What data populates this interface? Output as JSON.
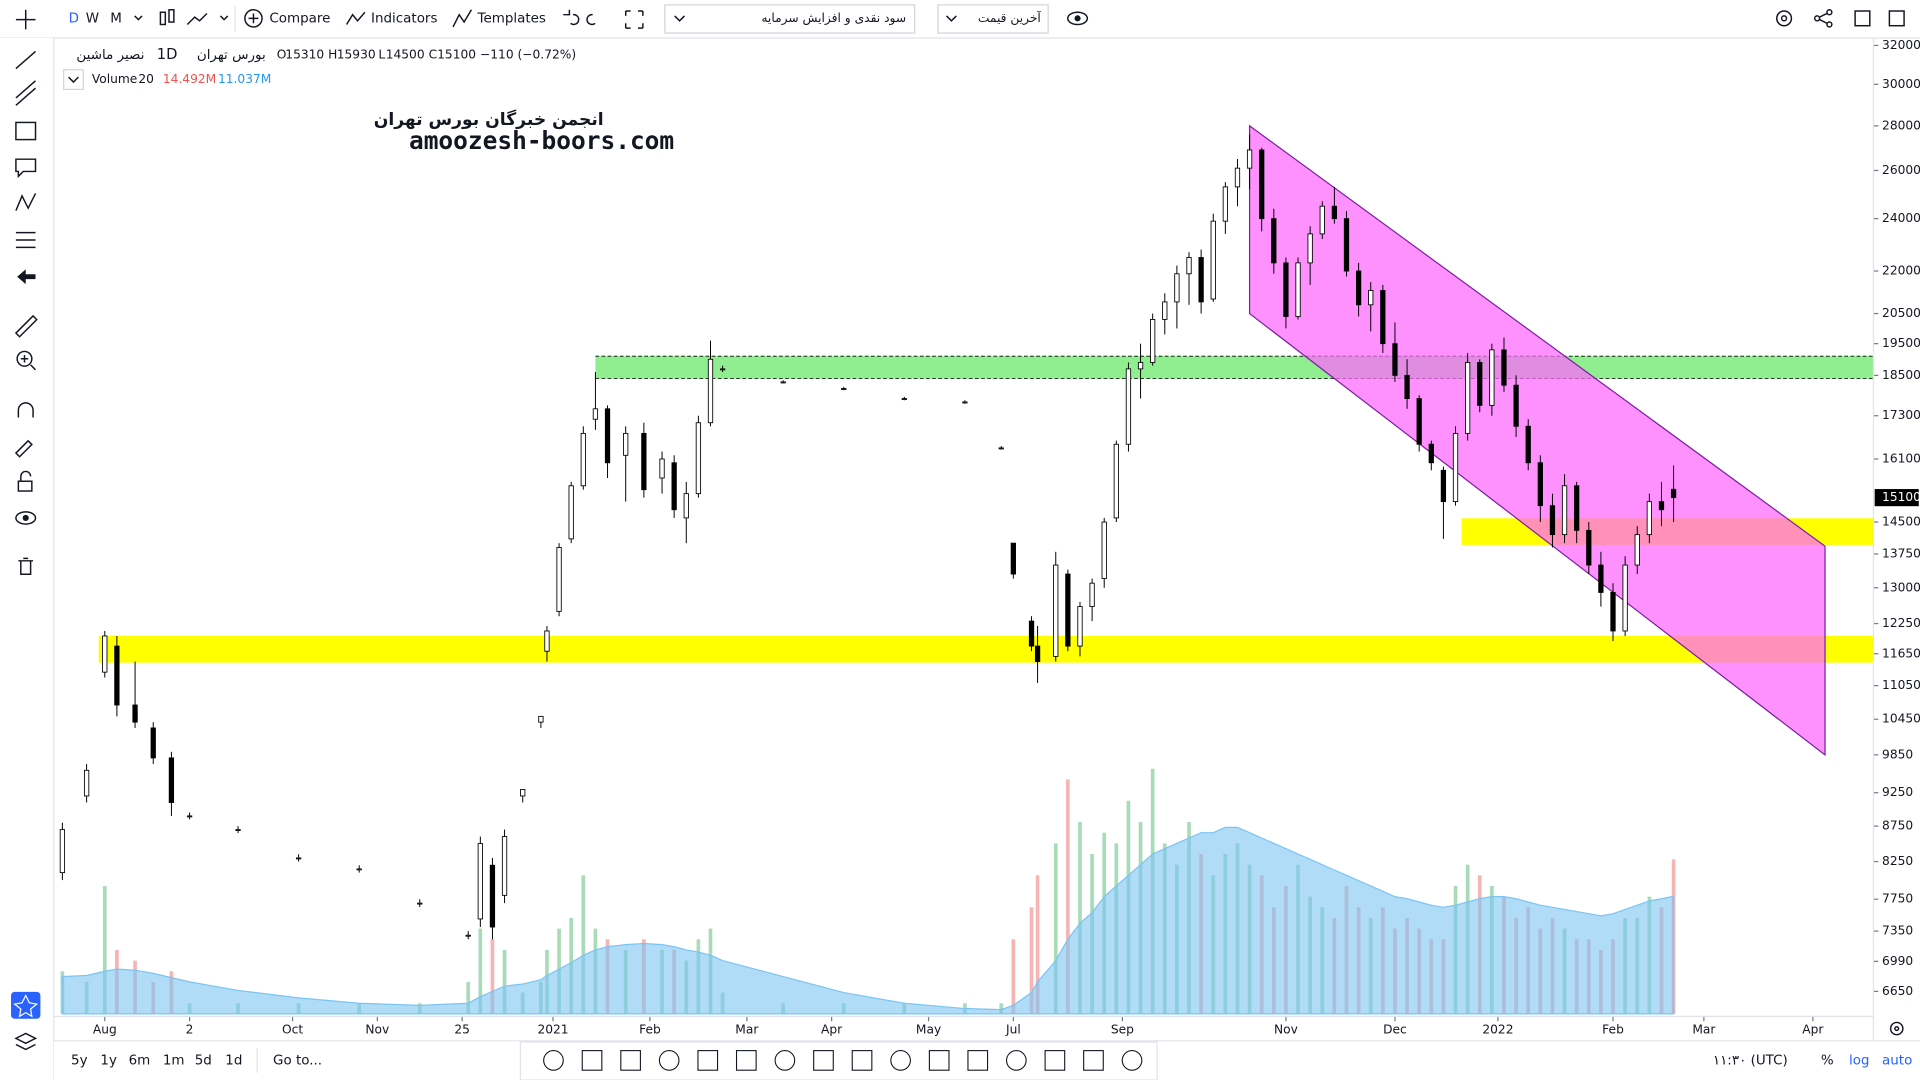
{
  "toolbar": {
    "intervals": [
      "D",
      "W",
      "M"
    ],
    "compare": "Compare",
    "indicators": "Indicators",
    "templates": "Templates",
    "dividend_dropdown": "سود نقدی و افزایش سرمایه",
    "price_dropdown": "آخرین قیمت"
  },
  "header": {
    "symbol": "نصیر ماشین",
    "interval": "1D",
    "exchange": "بورس تهران",
    "open_label": "O",
    "open": 15310,
    "high_label": "H",
    "high": 15930,
    "low_label": "L",
    "low": 14500,
    "close_label": "C",
    "close": 15100,
    "change": "−110 (−0.72%)",
    "volume_label": "Volume",
    "volume_length": 20,
    "volume_last": "14.492M",
    "volume_ma_last": "11.037M"
  },
  "watermark": {
    "persian": "انجمن خبرگان بورس تهران",
    "site": "amoozesh-boors.com"
  },
  "bottom_bar": {
    "ranges": [
      "5y",
      "1y",
      "6m",
      "1m",
      "5d",
      "1d"
    ],
    "goto": "Go to...",
    "clock": "۱۱:۳۰ (UTC)",
    "percent": "%",
    "log": "log",
    "auto": "auto"
  },
  "chart_data": {
    "type": "candlestick",
    "log_scale": true,
    "up_color": "#ffffff",
    "down_color": "#000000",
    "up_volume_color": "#a8dbb8",
    "down_volume_color": "#f5b5b5",
    "volume_ma_color": "#7cc4f4",
    "volume_ylim": [
      0,
      27
    ],
    "xlim": [
      0,
      300
    ],
    "ylim": [
      6380,
      32400
    ],
    "yticks": [
      32000,
      30000,
      28000,
      26000,
      24000,
      22000,
      20500,
      19500,
      18500,
      17300,
      16100,
      14500,
      13750,
      13000,
      12250,
      11650,
      11050,
      10450,
      9850,
      9250,
      8750,
      8250,
      7750,
      7350,
      6990,
      6650
    ],
    "xticks": [
      {
        "value": 8,
        "label": "Aug"
      },
      {
        "value": 22,
        "label": "2"
      },
      {
        "value": 39,
        "label": "Oct"
      },
      {
        "value": 53,
        "label": "Nov"
      },
      {
        "value": 67,
        "label": "25"
      },
      {
        "value": 82,
        "label": "2021"
      },
      {
        "value": 98,
        "label": "Feb"
      },
      {
        "value": 114,
        "label": "Mar"
      },
      {
        "value": 128,
        "label": "Apr"
      },
      {
        "value": 144,
        "label": "May"
      },
      {
        "value": 158,
        "label": "Jul"
      },
      {
        "value": 176,
        "label": "Sep"
      },
      {
        "value": 203,
        "label": "Nov"
      },
      {
        "value": 221,
        "label": "Dec"
      },
      {
        "value": 238,
        "label": "2022"
      },
      {
        "value": 257,
        "label": "Feb"
      },
      {
        "value": 272,
        "label": "Mar"
      },
      {
        "value": 290,
        "label": "Apr"
      }
    ],
    "zones": [
      {
        "xlim": [
          7,
          300
        ],
        "ylim": [
          11480,
          12000
        ],
        "color": "#ffff00",
        "border": "none"
      },
      {
        "xlim": [
          89,
          300
        ],
        "ylim": [
          18400,
          19100
        ],
        "color": "#90ee90",
        "border": "dashed"
      },
      {
        "xlim": [
          232,
          300
        ],
        "ylim": [
          13960,
          14590
        ],
        "color": "#ffff00",
        "border": "none"
      }
    ],
    "channel": {
      "x": [
        197,
        292,
        292,
        197
      ],
      "y": [
        28000,
        13930,
        9850,
        20500
      ],
      "color": "#ff66ff"
    },
    "candles": [
      {
        "x": 1,
        "open": 8100,
        "high": 8800,
        "low": 8000,
        "close": 8700,
        "volume": 4,
        "volume_ma": 3.5
      },
      {
        "x": 5,
        "open": 9200,
        "high": 9700,
        "low": 9100,
        "close": 9600,
        "volume": 3,
        "volume_ma": 3.6
      },
      {
        "x": 8,
        "open": 11300,
        "high": 12100,
        "low": 11200,
        "close": 12000,
        "volume": 12,
        "volume_ma": 4
      },
      {
        "x": 10,
        "open": 11800,
        "high": 12000,
        "low": 10500,
        "close": 10700,
        "volume": 6,
        "volume_ma": 4.2
      },
      {
        "x": 13,
        "open": 10700,
        "high": 11500,
        "low": 10300,
        "close": 10400,
        "volume": 5,
        "volume_ma": 4.1
      },
      {
        "x": 16,
        "open": 10300,
        "high": 10400,
        "low": 9700,
        "close": 9800,
        "volume": 3,
        "volume_ma": 3.8
      },
      {
        "x": 19,
        "open": 9800,
        "high": 9900,
        "low": 8900,
        "close": 9100,
        "volume": 4,
        "volume_ma": 3.4
      },
      {
        "x": 22,
        "open": 8900,
        "high": 8950,
        "low": 8850,
        "close": 8900,
        "volume": 1,
        "volume_ma": 3
      },
      {
        "x": 30,
        "open": 8700,
        "high": 8750,
        "low": 8650,
        "close": 8700,
        "volume": 1,
        "volume_ma": 2.2
      },
      {
        "x": 40,
        "open": 8300,
        "high": 8350,
        "low": 8250,
        "close": 8300,
        "volume": 1,
        "volume_ma": 1.5
      },
      {
        "x": 50,
        "open": 8150,
        "high": 8200,
        "low": 8100,
        "close": 8150,
        "volume": 1,
        "volume_ma": 1
      },
      {
        "x": 60,
        "open": 7700,
        "high": 7750,
        "low": 7650,
        "close": 7700,
        "volume": 1,
        "volume_ma": 0.8
      },
      {
        "x": 68,
        "open": 7300,
        "high": 7350,
        "low": 7250,
        "close": 7300,
        "volume": 3,
        "volume_ma": 1
      },
      {
        "x": 70,
        "open": 7500,
        "high": 8600,
        "low": 7400,
        "close": 8500,
        "volume": 8,
        "volume_ma": 1.6
      },
      {
        "x": 72,
        "open": 8200,
        "high": 8300,
        "low": 7250,
        "close": 7400,
        "volume": 7,
        "volume_ma": 2.1
      },
      {
        "x": 74,
        "open": 7800,
        "high": 8700,
        "low": 7700,
        "close": 8600,
        "volume": 6,
        "volume_ma": 2.6
      },
      {
        "x": 77,
        "open": 9200,
        "high": 9300,
        "low": 9100,
        "close": 9300,
        "volume": 2,
        "volume_ma": 2.8
      },
      {
        "x": 80,
        "open": 10400,
        "high": 10500,
        "low": 10300,
        "close": 10500,
        "volume": 3,
        "volume_ma": 3.2
      },
      {
        "x": 81,
        "open": 11700,
        "high": 12200,
        "low": 11500,
        "close": 12100,
        "volume": 6,
        "volume_ma": 3.6
      },
      {
        "x": 83,
        "open": 12500,
        "high": 14000,
        "low": 12400,
        "close": 13900,
        "volume": 8,
        "volume_ma": 4.2
      },
      {
        "x": 85,
        "open": 14100,
        "high": 15500,
        "low": 14000,
        "close": 15400,
        "volume": 9,
        "volume_ma": 4.8
      },
      {
        "x": 87,
        "open": 15400,
        "high": 17000,
        "low": 15300,
        "close": 16800,
        "volume": 13,
        "volume_ma": 5.5
      },
      {
        "x": 89,
        "open": 17200,
        "high": 18600,
        "low": 16900,
        "close": 17500,
        "volume": 8,
        "volume_ma": 6
      },
      {
        "x": 91,
        "open": 17500,
        "high": 17600,
        "low": 15600,
        "close": 16000,
        "volume": 7,
        "volume_ma": 6.3
      },
      {
        "x": 94,
        "open": 16200,
        "high": 17000,
        "low": 15000,
        "close": 16800,
        "volume": 6,
        "volume_ma": 6.5
      },
      {
        "x": 97,
        "open": 16800,
        "high": 17100,
        "low": 15100,
        "close": 15300,
        "volume": 7,
        "volume_ma": 6.6
      },
      {
        "x": 100,
        "open": 15600,
        "high": 16300,
        "low": 15200,
        "close": 16100,
        "volume": 6,
        "volume_ma": 6.5
      },
      {
        "x": 102,
        "open": 16000,
        "high": 16200,
        "low": 14600,
        "close": 14800,
        "volume": 6,
        "volume_ma": 6.3
      },
      {
        "x": 104,
        "open": 14600,
        "high": 15500,
        "low": 14000,
        "close": 15200,
        "volume": 5,
        "volume_ma": 6
      },
      {
        "x": 106,
        "open": 15200,
        "high": 17300,
        "low": 15100,
        "close": 17100,
        "volume": 7,
        "volume_ma": 5.8
      },
      {
        "x": 108,
        "open": 17100,
        "high": 19600,
        "low": 17000,
        "close": 19000,
        "volume": 8,
        "volume_ma": 5.5
      },
      {
        "x": 110,
        "open": 18700,
        "high": 18800,
        "low": 18600,
        "close": 18700,
        "volume": 2,
        "volume_ma": 5
      },
      {
        "x": 120,
        "open": 18300,
        "high": 18350,
        "low": 18250,
        "close": 18300,
        "volume": 1,
        "volume_ma": 3.5
      },
      {
        "x": 130,
        "open": 18100,
        "high": 18150,
        "low": 18050,
        "close": 18100,
        "volume": 1,
        "volume_ma": 2
      },
      {
        "x": 140,
        "open": 17800,
        "high": 17850,
        "low": 17750,
        "close": 17800,
        "volume": 1,
        "volume_ma": 1
      },
      {
        "x": 150,
        "open": 17700,
        "high": 17750,
        "low": 17650,
        "close": 17700,
        "volume": 1,
        "volume_ma": 0.5
      },
      {
        "x": 156,
        "open": 16400,
        "high": 16450,
        "low": 16350,
        "close": 16400,
        "volume": 1,
        "volume_ma": 0.4
      },
      {
        "x": 158,
        "open": 14000,
        "high": 14000,
        "low": 13200,
        "close": 13300,
        "volume": 7,
        "volume_ma": 0.8
      },
      {
        "x": 161,
        "open": 12300,
        "high": 12400,
        "low": 11700,
        "close": 11800,
        "volume": 10,
        "volume_ma": 2
      },
      {
        "x": 162,
        "open": 11800,
        "high": 12200,
        "low": 11100,
        "close": 11500,
        "volume": 13,
        "volume_ma": 3
      },
      {
        "x": 165,
        "open": 11600,
        "high": 13800,
        "low": 11500,
        "close": 13500,
        "volume": 16,
        "volume_ma": 5
      },
      {
        "x": 167,
        "open": 13300,
        "high": 13400,
        "low": 11700,
        "close": 11800,
        "volume": 22,
        "volume_ma": 7
      },
      {
        "x": 169,
        "open": 11800,
        "high": 12700,
        "low": 11600,
        "close": 12600,
        "volume": 18,
        "volume_ma": 8.5
      },
      {
        "x": 171,
        "open": 12600,
        "high": 13200,
        "low": 12300,
        "close": 13100,
        "volume": 15,
        "volume_ma": 9.5
      },
      {
        "x": 173,
        "open": 13200,
        "high": 14600,
        "low": 13000,
        "close": 14500,
        "volume": 17,
        "volume_ma": 11
      },
      {
        "x": 175,
        "open": 14600,
        "high": 16600,
        "low": 14500,
        "close": 16500,
        "volume": 16,
        "volume_ma": 12
      },
      {
        "x": 177,
        "open": 16500,
        "high": 18900,
        "low": 16300,
        "close": 18700,
        "volume": 20,
        "volume_ma": 13
      },
      {
        "x": 179,
        "open": 18700,
        "high": 19500,
        "low": 17800,
        "close": 18900,
        "volume": 18,
        "volume_ma": 14
      },
      {
        "x": 181,
        "open": 18900,
        "high": 20500,
        "low": 18800,
        "close": 20300,
        "volume": 23,
        "volume_ma": 15
      },
      {
        "x": 183,
        "open": 20300,
        "high": 21200,
        "low": 19800,
        "close": 20900,
        "volume": 16,
        "volume_ma": 15.5
      },
      {
        "x": 185,
        "open": 20900,
        "high": 22200,
        "low": 20000,
        "close": 21900,
        "volume": 14,
        "volume_ma": 16
      },
      {
        "x": 187,
        "open": 21900,
        "high": 22700,
        "low": 20800,
        "close": 22500,
        "volume": 18,
        "volume_ma": 16.5
      },
      {
        "x": 189,
        "open": 22500,
        "high": 22800,
        "low": 20500,
        "close": 20900,
        "volume": 15,
        "volume_ma": 17
      },
      {
        "x": 191,
        "open": 21000,
        "high": 24200,
        "low": 20900,
        "close": 23900,
        "volume": 13,
        "volume_ma": 17
      },
      {
        "x": 193,
        "open": 23900,
        "high": 25500,
        "low": 23400,
        "close": 25300,
        "volume": 15,
        "volume_ma": 17.5
      },
      {
        "x": 195,
        "open": 25300,
        "high": 26500,
        "low": 24500,
        "close": 26100,
        "volume": 16,
        "volume_ma": 17.5
      },
      {
        "x": 197,
        "open": 26100,
        "high": 27600,
        "low": 25200,
        "close": 26900,
        "volume": 14,
        "volume_ma": 17
      },
      {
        "x": 199,
        "open": 26900,
        "high": 27000,
        "low": 23500,
        "close": 24000,
        "volume": 13,
        "volume_ma": 16.5
      },
      {
        "x": 201,
        "open": 24000,
        "high": 24400,
        "low": 21900,
        "close": 22300,
        "volume": 10,
        "volume_ma": 16
      },
      {
        "x": 203,
        "open": 22300,
        "high": 22500,
        "low": 20000,
        "close": 20400,
        "volume": 12,
        "volume_ma": 15.5
      },
      {
        "x": 205,
        "open": 20400,
        "high": 22500,
        "low": 20300,
        "close": 22300,
        "volume": 14,
        "volume_ma": 15
      },
      {
        "x": 207,
        "open": 22300,
        "high": 23700,
        "low": 21500,
        "close": 23400,
        "volume": 11,
        "volume_ma": 14.5
      },
      {
        "x": 209,
        "open": 23400,
        "high": 24700,
        "low": 23200,
        "close": 24500,
        "volume": 10,
        "volume_ma": 14
      },
      {
        "x": 211,
        "open": 24500,
        "high": 25300,
        "low": 23800,
        "close": 24000,
        "volume": 9,
        "volume_ma": 13.5
      },
      {
        "x": 213,
        "open": 24000,
        "high": 24300,
        "low": 21800,
        "close": 22000,
        "volume": 12,
        "volume_ma": 13
      },
      {
        "x": 215,
        "open": 22000,
        "high": 22300,
        "low": 20400,
        "close": 20800,
        "volume": 10,
        "volume_ma": 12.5
      },
      {
        "x": 217,
        "open": 20800,
        "high": 21600,
        "low": 19900,
        "close": 21300,
        "volume": 9,
        "volume_ma": 12
      },
      {
        "x": 219,
        "open": 21300,
        "high": 21500,
        "low": 19200,
        "close": 19500,
        "volume": 10,
        "volume_ma": 11.5
      },
      {
        "x": 221,
        "open": 19500,
        "high": 20200,
        "low": 18300,
        "close": 18500,
        "volume": 8,
        "volume_ma": 11
      },
      {
        "x": 223,
        "open": 18500,
        "high": 19000,
        "low": 17500,
        "close": 17800,
        "volume": 9,
        "volume_ma": 10.8
      },
      {
        "x": 225,
        "open": 17800,
        "high": 17900,
        "low": 16300,
        "close": 16500,
        "volume": 8,
        "volume_ma": 10.5
      },
      {
        "x": 227,
        "open": 16500,
        "high": 16600,
        "low": 15800,
        "close": 16000,
        "volume": 7,
        "volume_ma": 10.2
      },
      {
        "x": 229,
        "open": 15800,
        "high": 15900,
        "low": 14100,
        "close": 15000,
        "volume": 7,
        "volume_ma": 10
      },
      {
        "x": 231,
        "open": 15000,
        "high": 17000,
        "low": 14900,
        "close": 16800,
        "volume": 12,
        "volume_ma": 10.2
      },
      {
        "x": 233,
        "open": 16800,
        "high": 19200,
        "low": 16600,
        "close": 18900,
        "volume": 14,
        "volume_ma": 10.5
      },
      {
        "x": 235,
        "open": 18900,
        "high": 19000,
        "low": 17400,
        "close": 17600,
        "volume": 13,
        "volume_ma": 10.8
      },
      {
        "x": 237,
        "open": 17600,
        "high": 19500,
        "low": 17300,
        "close": 19300,
        "volume": 12,
        "volume_ma": 11
      },
      {
        "x": 239,
        "open": 19300,
        "high": 19700,
        "low": 18000,
        "close": 18200,
        "volume": 11,
        "volume_ma": 11
      },
      {
        "x": 241,
        "open": 18200,
        "high": 18500,
        "low": 16700,
        "close": 17000,
        "volume": 9,
        "volume_ma": 10.8
      },
      {
        "x": 243,
        "open": 17000,
        "high": 17200,
        "low": 15800,
        "close": 16000,
        "volume": 10,
        "volume_ma": 10.5
      },
      {
        "x": 245,
        "open": 16000,
        "high": 16200,
        "low": 14500,
        "close": 14900,
        "volume": 8,
        "volume_ma": 10.2
      },
      {
        "x": 247,
        "open": 14900,
        "high": 15200,
        "low": 13900,
        "close": 14200,
        "volume": 9,
        "volume_ma": 10
      },
      {
        "x": 249,
        "open": 14200,
        "high": 15700,
        "low": 14000,
        "close": 15400,
        "volume": 8,
        "volume_ma": 9.8
      },
      {
        "x": 251,
        "open": 15400,
        "high": 15500,
        "low": 14000,
        "close": 14300,
        "volume": 7,
        "volume_ma": 9.6
      },
      {
        "x": 253,
        "open": 14300,
        "high": 14500,
        "low": 13300,
        "close": 13500,
        "volume": 7,
        "volume_ma": 9.4
      },
      {
        "x": 255,
        "open": 13500,
        "high": 13800,
        "low": 12600,
        "close": 12900,
        "volume": 6,
        "volume_ma": 9.2
      },
      {
        "x": 257,
        "open": 12900,
        "high": 13100,
        "low": 11900,
        "close": 12100,
        "volume": 7,
        "volume_ma": 9.4
      },
      {
        "x": 259,
        "open": 12100,
        "high": 13700,
        "low": 12000,
        "close": 13500,
        "volume": 9,
        "volume_ma": 9.8
      },
      {
        "x": 261,
        "open": 13500,
        "high": 14400,
        "low": 13300,
        "close": 14200,
        "volume": 9,
        "volume_ma": 10.2
      },
      {
        "x": 263,
        "open": 14200,
        "high": 15200,
        "low": 14000,
        "close": 15000,
        "volume": 11,
        "volume_ma": 10.6
      },
      {
        "x": 265,
        "open": 15000,
        "high": 15500,
        "low": 14400,
        "close": 14800,
        "volume": 10,
        "volume_ma": 10.8
      },
      {
        "x": 267,
        "open": 15310,
        "high": 15930,
        "low": 14500,
        "close": 15100,
        "volume": 14.492,
        "volume_ma": 11.037
      }
    ]
  }
}
